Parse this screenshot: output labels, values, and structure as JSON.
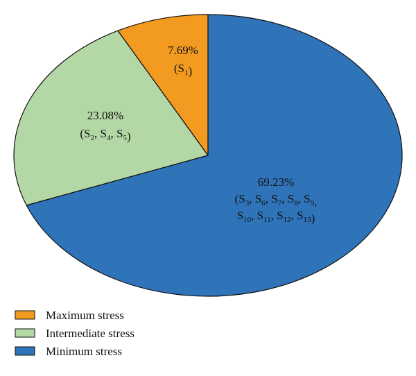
{
  "chart_data": {
    "type": "pie",
    "slices": [
      {
        "name": "Maximum stress",
        "value": 7.69,
        "label": "7.69%",
        "members": [
          "1"
        ],
        "color": "#F39A21"
      },
      {
        "name": "Intermediate stress",
        "value": 23.08,
        "label": "23.08%",
        "members": [
          "2",
          "4",
          "5"
        ],
        "color": "#B4D8A5"
      },
      {
        "name": "Minimum stress",
        "value": 69.23,
        "label": "69.23%",
        "members": [
          "3",
          "6",
          "7",
          "8",
          "9",
          "10",
          "11",
          "12",
          "13"
        ],
        "color": "#2F73B8"
      }
    ],
    "member_prefix": "S",
    "legend_position": "bottom-left"
  }
}
